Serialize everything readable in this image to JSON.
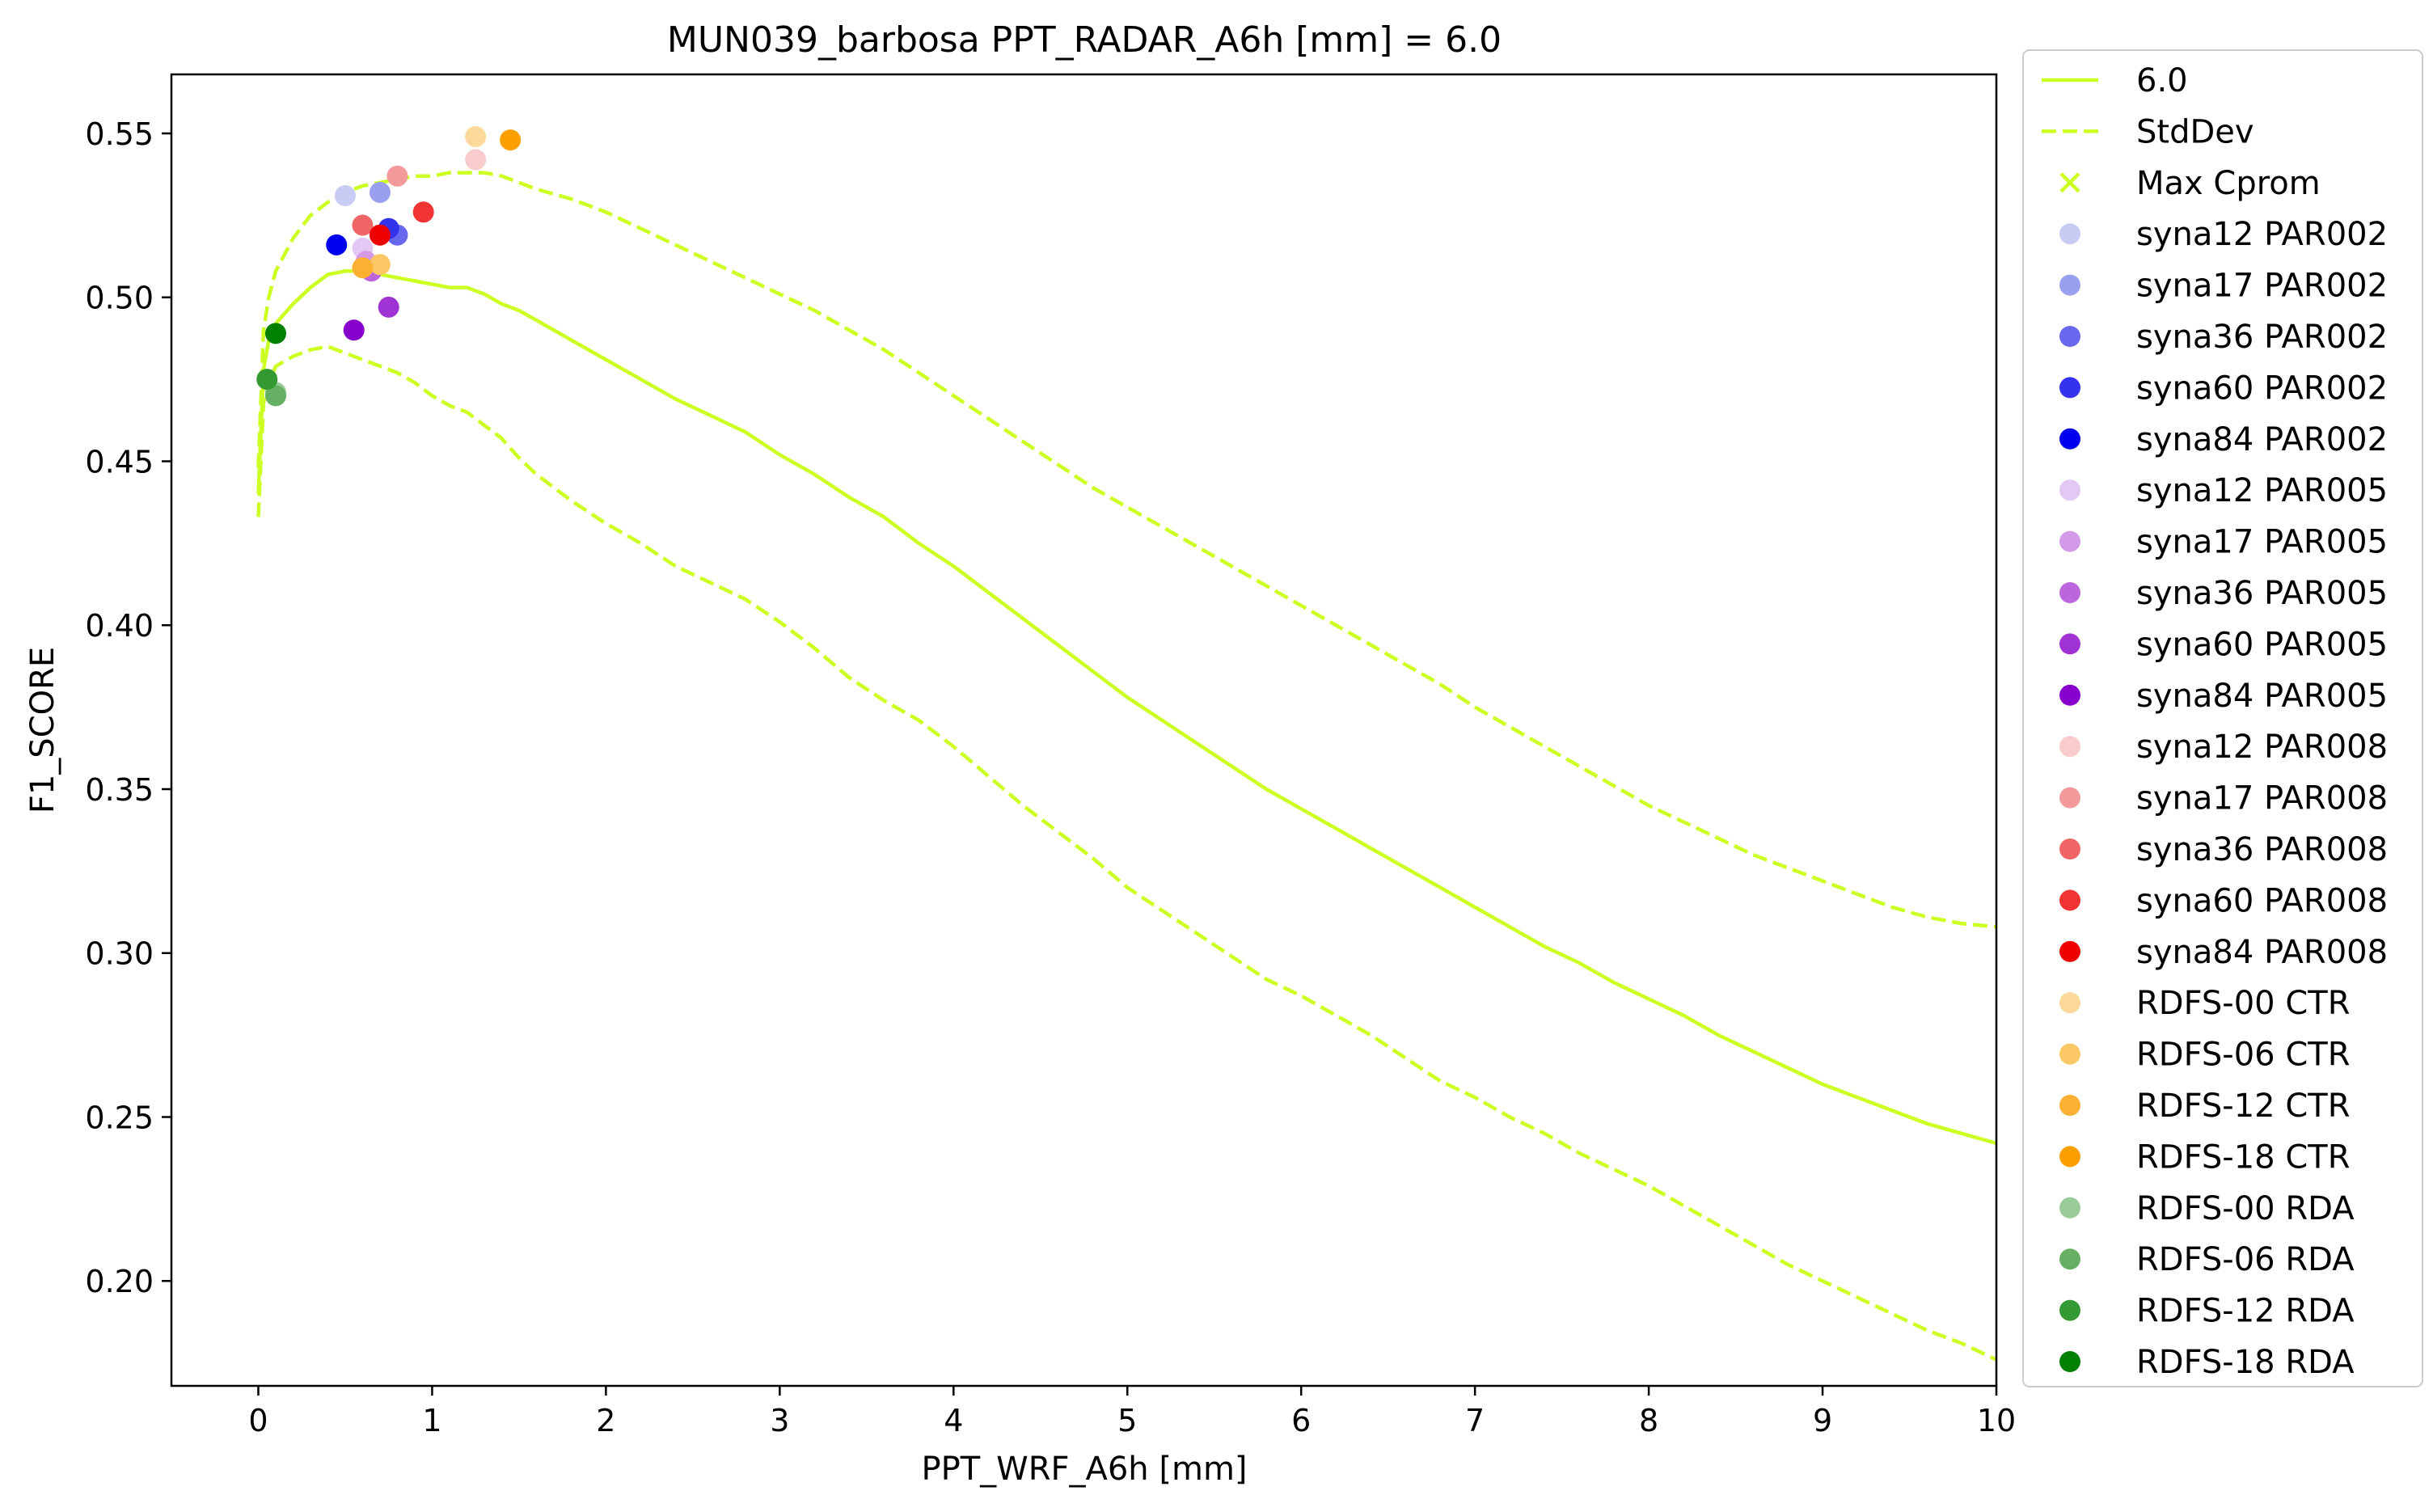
{
  "chart_data": {
    "type": "line",
    "title": "MUN039_barbosa    PPT_RADAR_A6h [mm] = 6.0",
    "xlabel": "PPT_WRF_A6h [mm]",
    "ylabel": "F1_SCORE",
    "xlim": [
      -0.5,
      10
    ],
    "ylim": [
      0.168,
      0.568
    ],
    "xticks": [
      0,
      1,
      2,
      3,
      4,
      5,
      6,
      7,
      8,
      9,
      10
    ],
    "yticks": [
      0.2,
      0.25,
      0.3,
      0.35,
      0.4,
      0.45,
      0.5,
      0.55
    ],
    "ytick_labels": [
      "0.20",
      "0.25",
      "0.30",
      "0.35",
      "0.40",
      "0.45",
      "0.50",
      "0.55"
    ],
    "grid": false,
    "legend_position": "outside-right",
    "line_color": "#ccff22",
    "lines": [
      {
        "name": "6.0",
        "style": "solid",
        "x": [
          0,
          0.03,
          0.06,
          0.1,
          0.2,
          0.3,
          0.4,
          0.5,
          0.6,
          0.7,
          0.8,
          0.9,
          1.0,
          1.1,
          1.2,
          1.3,
          1.4,
          1.5,
          1.6,
          1.8,
          2.0,
          2.2,
          2.4,
          2.6,
          2.8,
          3.0,
          3.2,
          3.4,
          3.6,
          3.8,
          4.0,
          4.2,
          4.4,
          4.6,
          4.8,
          5.0,
          5.2,
          5.4,
          5.6,
          5.8,
          6.0,
          6.2,
          6.4,
          6.6,
          6.8,
          7.0,
          7.2,
          7.4,
          7.6,
          7.8,
          8.0,
          8.2,
          8.4,
          8.6,
          8.8,
          9.0,
          9.2,
          9.4,
          9.6,
          9.8,
          10.0
        ],
        "y": [
          0.44,
          0.478,
          0.487,
          0.492,
          0.498,
          0.503,
          0.507,
          0.508,
          0.508,
          0.507,
          0.506,
          0.505,
          0.504,
          0.503,
          0.503,
          0.501,
          0.498,
          0.496,
          0.493,
          0.487,
          0.481,
          0.475,
          0.469,
          0.464,
          0.459,
          0.452,
          0.446,
          0.439,
          0.433,
          0.425,
          0.418,
          0.41,
          0.402,
          0.394,
          0.386,
          0.378,
          0.371,
          0.364,
          0.357,
          0.35,
          0.344,
          0.338,
          0.332,
          0.326,
          0.32,
          0.314,
          0.308,
          0.302,
          0.297,
          0.291,
          0.286,
          0.281,
          0.275,
          0.27,
          0.265,
          0.26,
          0.256,
          0.252,
          0.248,
          0.245,
          0.242
        ]
      },
      {
        "name": "StdDev",
        "style": "dashed",
        "x": [
          0,
          0.03,
          0.06,
          0.1,
          0.2,
          0.3,
          0.4,
          0.5,
          0.6,
          0.7,
          0.8,
          0.9,
          1.0,
          1.1,
          1.2,
          1.3,
          1.4,
          1.5,
          1.6,
          1.8,
          2.0,
          2.2,
          2.4,
          2.6,
          2.8,
          3.0,
          3.2,
          3.4,
          3.6,
          3.8,
          4.0,
          4.2,
          4.4,
          4.6,
          4.8,
          5.0,
          5.2,
          5.4,
          5.6,
          5.8,
          6.0,
          6.2,
          6.4,
          6.6,
          6.8,
          7.0,
          7.2,
          7.4,
          7.6,
          7.8,
          8.0,
          8.2,
          8.4,
          8.6,
          8.8,
          9.0,
          9.2,
          9.4,
          9.6,
          9.8,
          10.0
        ],
        "y": [
          0.448,
          0.49,
          0.5,
          0.508,
          0.518,
          0.525,
          0.529,
          0.532,
          0.534,
          0.535,
          0.536,
          0.537,
          0.537,
          0.538,
          0.538,
          0.538,
          0.537,
          0.535,
          0.533,
          0.53,
          0.526,
          0.521,
          0.516,
          0.511,
          0.506,
          0.501,
          0.496,
          0.49,
          0.484,
          0.477,
          0.47,
          0.463,
          0.456,
          0.449,
          0.442,
          0.436,
          0.43,
          0.424,
          0.418,
          0.412,
          0.406,
          0.4,
          0.394,
          0.388,
          0.382,
          0.375,
          0.369,
          0.363,
          0.357,
          0.351,
          0.345,
          0.34,
          0.335,
          0.33,
          0.326,
          0.322,
          0.318,
          0.314,
          0.311,
          0.309,
          0.308
        ]
      },
      {
        "name": "StdDev",
        "style": "dashed",
        "x": [
          0,
          0.03,
          0.06,
          0.1,
          0.2,
          0.3,
          0.4,
          0.5,
          0.6,
          0.7,
          0.8,
          0.9,
          1.0,
          1.1,
          1.2,
          1.3,
          1.4,
          1.5,
          1.6,
          1.8,
          2.0,
          2.2,
          2.4,
          2.6,
          2.8,
          3.0,
          3.2,
          3.4,
          3.6,
          3.8,
          4.0,
          4.2,
          4.4,
          4.6,
          4.8,
          5.0,
          5.2,
          5.4,
          5.6,
          5.8,
          6.0,
          6.2,
          6.4,
          6.6,
          6.8,
          7.0,
          7.2,
          7.4,
          7.6,
          7.8,
          8.0,
          8.2,
          8.4,
          8.6,
          8.8,
          9.0,
          9.2,
          9.4,
          9.6,
          9.8,
          10.0
        ],
        "y": [
          0.433,
          0.468,
          0.474,
          0.479,
          0.482,
          0.484,
          0.485,
          0.483,
          0.481,
          0.479,
          0.477,
          0.474,
          0.47,
          0.467,
          0.465,
          0.461,
          0.457,
          0.451,
          0.446,
          0.438,
          0.431,
          0.425,
          0.418,
          0.413,
          0.408,
          0.401,
          0.393,
          0.384,
          0.377,
          0.371,
          0.363,
          0.354,
          0.345,
          0.337,
          0.329,
          0.32,
          0.313,
          0.306,
          0.299,
          0.292,
          0.287,
          0.281,
          0.275,
          0.268,
          0.261,
          0.256,
          0.25,
          0.245,
          0.239,
          0.234,
          0.229,
          0.223,
          0.217,
          0.211,
          0.205,
          0.2,
          0.195,
          0.19,
          0.185,
          0.181,
          0.176
        ]
      }
    ],
    "scatter": [
      {
        "name": "syna12 PAR002",
        "color": "#c8ccf4",
        "x": 0.5,
        "y": 0.531
      },
      {
        "name": "syna17 PAR002",
        "color": "#9aa0f0",
        "x": 0.7,
        "y": 0.532
      },
      {
        "name": "syna36 PAR002",
        "color": "#6868ee",
        "x": 0.8,
        "y": 0.519
      },
      {
        "name": "syna60 PAR002",
        "color": "#3333ee",
        "x": 0.75,
        "y": 0.521
      },
      {
        "name": "syna84 PAR002",
        "color": "#0000ee",
        "x": 0.45,
        "y": 0.516
      },
      {
        "name": "syna12 PAR005",
        "color": "#e4c8f4",
        "x": 0.6,
        "y": 0.515
      },
      {
        "name": "syna17 PAR005",
        "color": "#d49ae8",
        "x": 0.62,
        "y": 0.511
      },
      {
        "name": "syna36 PAR005",
        "color": "#bb66dd",
        "x": 0.65,
        "y": 0.508
      },
      {
        "name": "syna60 PAR005",
        "color": "#a033d4",
        "x": 0.75,
        "y": 0.497
      },
      {
        "name": "syna84 PAR005",
        "color": "#8800cc",
        "x": 0.55,
        "y": 0.49
      },
      {
        "name": "syna12 PAR008",
        "color": "#f8cccc",
        "x": 1.25,
        "y": 0.542
      },
      {
        "name": "syna17 PAR008",
        "color": "#f49a9a",
        "x": 0.8,
        "y": 0.537
      },
      {
        "name": "syna36 PAR008",
        "color": "#f06666",
        "x": 0.6,
        "y": 0.522
      },
      {
        "name": "syna60 PAR008",
        "color": "#f03333",
        "x": 0.95,
        "y": 0.526
      },
      {
        "name": "syna84 PAR008",
        "color": "#ee0000",
        "x": 0.7,
        "y": 0.519
      },
      {
        "name": "RDFS-00 CTR",
        "color": "#fcd89a",
        "x": 1.25,
        "y": 0.549
      },
      {
        "name": "RDFS-06 CTR",
        "color": "#fcc866",
        "x": 0.7,
        "y": 0.51
      },
      {
        "name": "RDFS-12 CTR",
        "color": "#fcb033",
        "x": 0.6,
        "y": 0.509
      },
      {
        "name": "RDFS-18 CTR",
        "color": "#fca000",
        "x": 1.45,
        "y": 0.548
      },
      {
        "name": "RDFS-00 RDA",
        "color": "#99cc99",
        "x": 0.1,
        "y": 0.471
      },
      {
        "name": "RDFS-06 RDA",
        "color": "#66b066",
        "x": 0.1,
        "y": 0.47
      },
      {
        "name": "RDFS-12 RDA",
        "color": "#339933",
        "x": 0.05,
        "y": 0.475
      },
      {
        "name": "RDFS-18 RDA",
        "color": "#008000",
        "x": 0.1,
        "y": 0.489
      }
    ],
    "legend": [
      {
        "label": "6.0",
        "kind": "line",
        "color": "#ccff22"
      },
      {
        "label": "StdDev",
        "kind": "dash",
        "color": "#ccff22"
      },
      {
        "label": "Max Cprom",
        "kind": "x",
        "color": "#ccff22"
      },
      {
        "label": "syna12 PAR002",
        "kind": "dot",
        "color": "#c8ccf4"
      },
      {
        "label": "syna17 PAR002",
        "kind": "dot",
        "color": "#9aa0f0"
      },
      {
        "label": "syna36 PAR002",
        "kind": "dot",
        "color": "#6868ee"
      },
      {
        "label": "syna60 PAR002",
        "kind": "dot",
        "color": "#3333ee"
      },
      {
        "label": "syna84 PAR002",
        "kind": "dot",
        "color": "#0000ee"
      },
      {
        "label": "syna12 PAR005",
        "kind": "dot",
        "color": "#e4c8f4"
      },
      {
        "label": "syna17 PAR005",
        "kind": "dot",
        "color": "#d49ae8"
      },
      {
        "label": "syna36 PAR005",
        "kind": "dot",
        "color": "#bb66dd"
      },
      {
        "label": "syna60 PAR005",
        "kind": "dot",
        "color": "#a033d4"
      },
      {
        "label": "syna84 PAR005",
        "kind": "dot",
        "color": "#8800cc"
      },
      {
        "label": "syna12 PAR008",
        "kind": "dot",
        "color": "#f8cccc"
      },
      {
        "label": "syna17 PAR008",
        "kind": "dot",
        "color": "#f49a9a"
      },
      {
        "label": "syna36 PAR008",
        "kind": "dot",
        "color": "#f06666"
      },
      {
        "label": "syna60 PAR008",
        "kind": "dot",
        "color": "#f03333"
      },
      {
        "label": "syna84 PAR008",
        "kind": "dot",
        "color": "#ee0000"
      },
      {
        "label": "RDFS-00 CTR",
        "kind": "dot",
        "color": "#fcd89a"
      },
      {
        "label": "RDFS-06 CTR",
        "kind": "dot",
        "color": "#fcc866"
      },
      {
        "label": "RDFS-12 CTR",
        "kind": "dot",
        "color": "#fcb033"
      },
      {
        "label": "RDFS-18 CTR",
        "kind": "dot",
        "color": "#fca000"
      },
      {
        "label": "RDFS-00 RDA",
        "kind": "dot",
        "color": "#99cc99"
      },
      {
        "label": "RDFS-06 RDA",
        "kind": "dot",
        "color": "#66b066"
      },
      {
        "label": "RDFS-12 RDA",
        "kind": "dot",
        "color": "#339933"
      },
      {
        "label": "RDFS-18 RDA",
        "kind": "dot",
        "color": "#008000"
      }
    ]
  }
}
